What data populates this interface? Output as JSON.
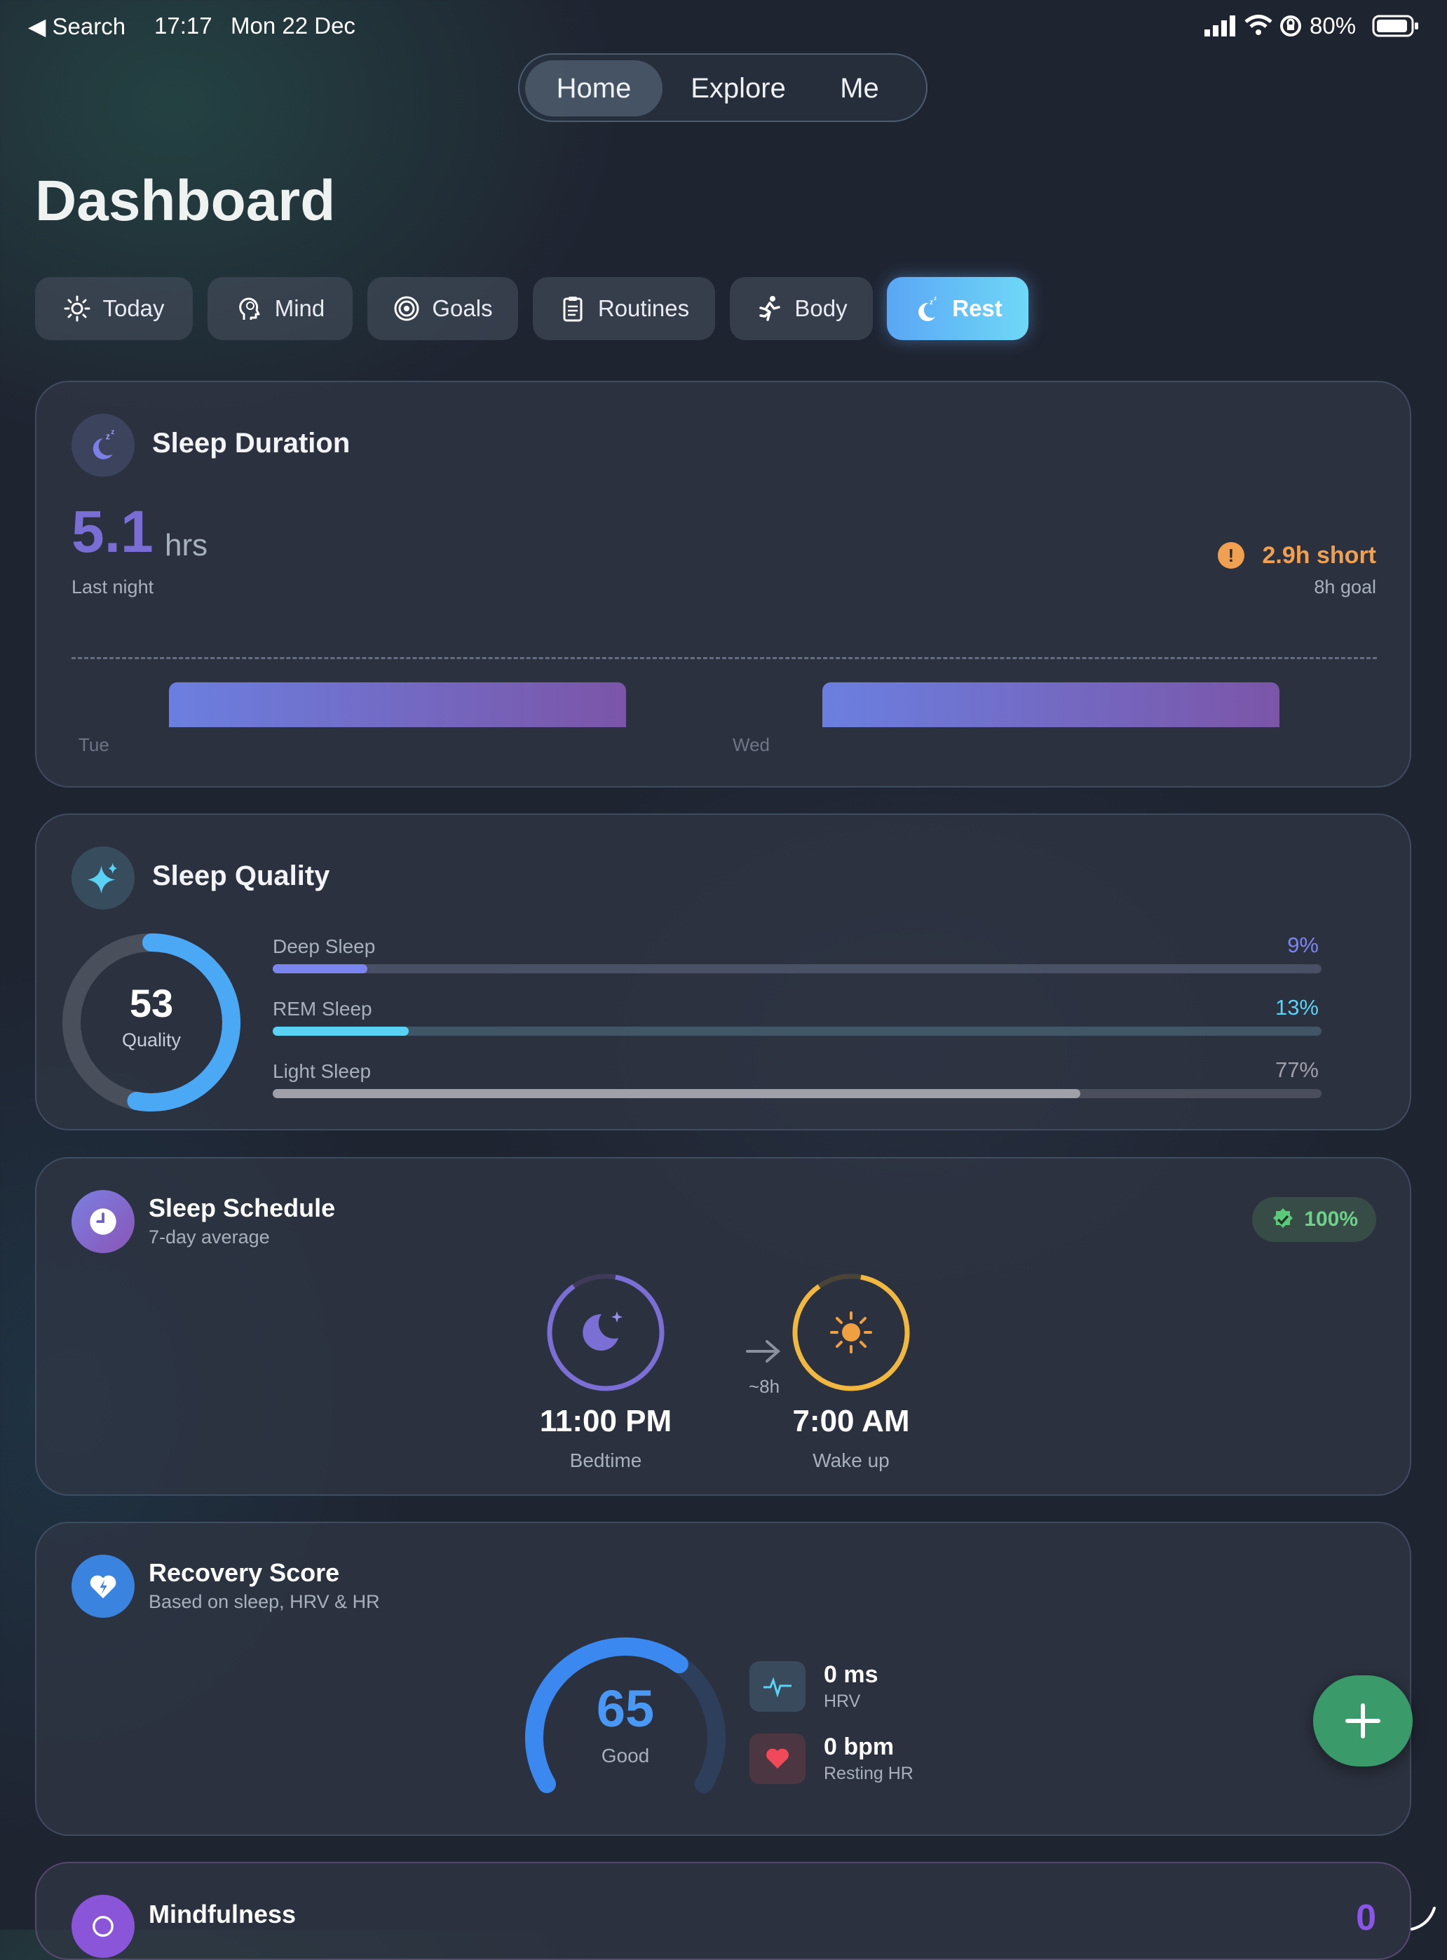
{
  "status_bar": {
    "back_label": "◀ Search",
    "time": "17:17",
    "date": "Mon 22 Dec",
    "battery": "80%"
  },
  "top_nav": {
    "items": [
      "Home",
      "Explore",
      "Me"
    ],
    "active": "Home"
  },
  "page_title": "Dashboard",
  "tabs": [
    {
      "label": "Today",
      "icon": "sun-icon"
    },
    {
      "label": "Mind",
      "icon": "brain-head-icon"
    },
    {
      "label": "Goals",
      "icon": "target-icon"
    },
    {
      "label": "Routines",
      "icon": "clipboard-icon"
    },
    {
      "label": "Body",
      "icon": "running-icon"
    },
    {
      "label": "Rest",
      "icon": "moon-zzz-icon",
      "active": true
    }
  ],
  "sleep_duration": {
    "title": "Sleep Duration",
    "value": "5.1",
    "unit": "hrs",
    "caption": "Last night",
    "short_label": "2.9h short",
    "goal_label": "8h goal",
    "days": [
      "Tue",
      "Wed"
    ],
    "colors": {
      "bar_start": "#6b7fe0",
      "bar_end": "#7b55a8",
      "short": "#f0a050"
    }
  },
  "sleep_quality": {
    "title": "Sleep Quality",
    "score": "53",
    "score_label": "Quality",
    "score_value": 0.53,
    "stages": [
      {
        "label": "Deep Sleep",
        "value": "9%",
        "fraction": 0.09,
        "color": "#7b85f0"
      },
      {
        "label": "REM Sleep",
        "value": "13%",
        "fraction": 0.13,
        "color": "#5ad2f5"
      },
      {
        "label": "Light Sleep",
        "value": "77%",
        "fraction": 0.77,
        "color": "#a0a0a8"
      }
    ]
  },
  "sleep_schedule": {
    "title": "Sleep Schedule",
    "subtitle": "7-day average",
    "badge": "100%",
    "bedtime": "11:00 PM",
    "bedtime_label": "Bedtime",
    "wake": "7:00 AM",
    "wake_label": "Wake up",
    "gap": "~8h"
  },
  "recovery": {
    "title": "Recovery Score",
    "subtitle": "Based on sleep, HRV & HR",
    "score": "65",
    "score_label": "Good",
    "score_value": 0.65,
    "hrv_value": "0 ms",
    "hrv_label": "HRV",
    "hr_value": "0 bpm",
    "hr_label": "Resting HR"
  },
  "mindfulness": {
    "title": "Mindfulness",
    "count": "0"
  }
}
